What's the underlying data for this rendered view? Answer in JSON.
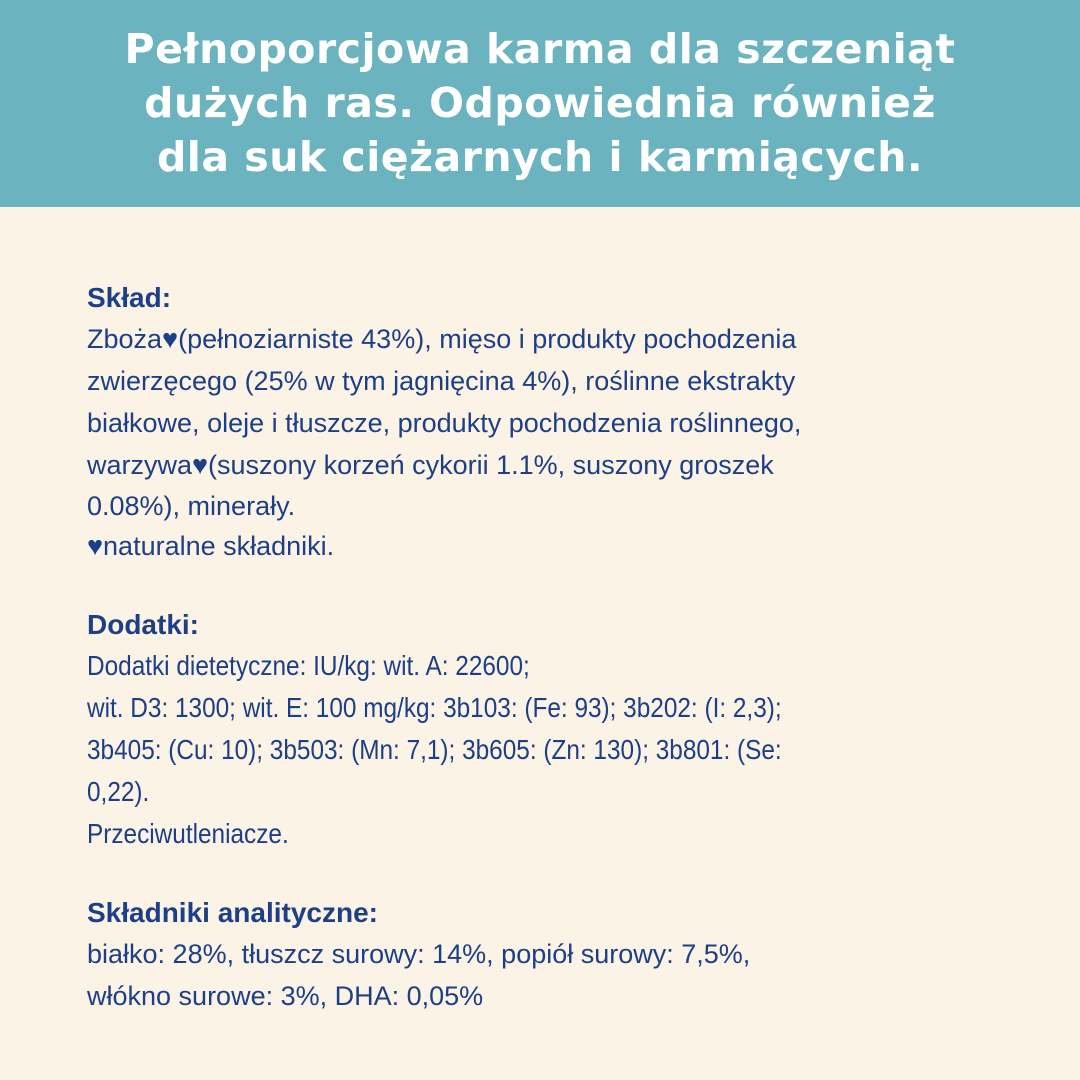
{
  "header": {
    "title_lines": [
      "Pełnoporcjowa karma dla szczeniąt",
      "dużych ras. Odpowiednia również",
      "dla suk ciężarnych i karmiących."
    ]
  },
  "sklad": {
    "heading": "Skład:",
    "lines": [
      "Zboża♥(pełnoziarniste 43%), mięso i produkty pochodzenia",
      "zwierzęcego (25% w tym jagnięcina 4%), roślinne ekstrakty",
      "białkowe, oleje i tłuszcze, produkty pochodzenia roślinnego,",
      "warzywa♥(suszony korzeń cykorii 1.1%, suszony groszek",
      "0.08%), minerały.",
      "♥naturalne składniki."
    ]
  },
  "dodatki": {
    "heading": "Dodatki:",
    "lines": [
      "Dodatki dietetyczne:  IU/kg: wit. A: 22600;",
      "wit. D3: 1300; wit. E: 100 mg/kg: 3b103: (Fe: 93); 3b202: (I: 2,3);",
      "3b405: (Cu: 10); 3b503: (Mn: 7,1); 3b605: (Zn: 130); 3b801: (Se:",
      "0,22).",
      "Przeciwutleniacze."
    ]
  },
  "analityczne": {
    "heading": "Składniki analityczne:",
    "lines": [
      "białko: 28%, tłuszcz surowy: 14%, popiół surowy: 7,5%,",
      "włókno surowe: 3%, DHA: 0,05%"
    ]
  },
  "colors": {
    "header_bg": "#6BB3BE",
    "page_bg": "#FBF3E6",
    "text": "#1C3F87",
    "title_text": "#FFFFFF"
  }
}
